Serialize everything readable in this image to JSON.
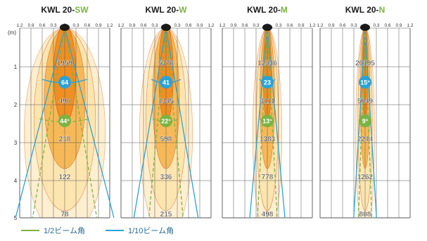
{
  "depth_unit": "(m)",
  "depth_ticks": [
    "1",
    "2",
    "3",
    "4",
    "5"
  ],
  "width_ticks": [
    "1.2",
    "0.9",
    "0.6",
    "0.3",
    "0",
    "0.3",
    "0.6",
    "0.9",
    "1.2"
  ],
  "colors": {
    "half_beam": "#7cb342",
    "tenth_beam": "#29a3d6",
    "title_dark": "#1a1a1a",
    "label_text": "#333333",
    "grid": "#555555",
    "fill_inner": "#f08a1c",
    "fill_mid": "#f7b54f",
    "fill_outer": "#fde4ad",
    "fill_edge": "#fdeecb"
  },
  "panels": [
    {
      "model_prefix": "KWL 20-",
      "model_suffix": "SW",
      "tenth_angle": "64",
      "half_angle": "44°",
      "lux": [
        "1959",
        "490",
        "218",
        "122",
        "78"
      ]
    },
    {
      "model_prefix": "KWL 20-",
      "model_suffix": "W",
      "tenth_angle": "41",
      "half_angle": "22°",
      "lux": [
        "5378",
        "1345",
        "598",
        "336",
        "215"
      ]
    },
    {
      "model_prefix": "KWL 20-",
      "model_suffix": "M",
      "tenth_angle": "23",
      "half_angle": "13°",
      "lux": [
        "12446",
        "3111",
        "1383",
        "778",
        "498"
      ]
    },
    {
      "model_prefix": "KWL 20-",
      "model_suffix": "N",
      "tenth_angle": "15°",
      "half_angle": "9°",
      "lux": [
        "20195",
        "5049",
        "2244",
        "1262",
        "808"
      ]
    }
  ],
  "legend": [
    {
      "label": "1/2ビーム角",
      "color": "#7cb342"
    },
    {
      "label": "1/10ビーム角",
      "color": "#29a3d6"
    }
  ]
}
